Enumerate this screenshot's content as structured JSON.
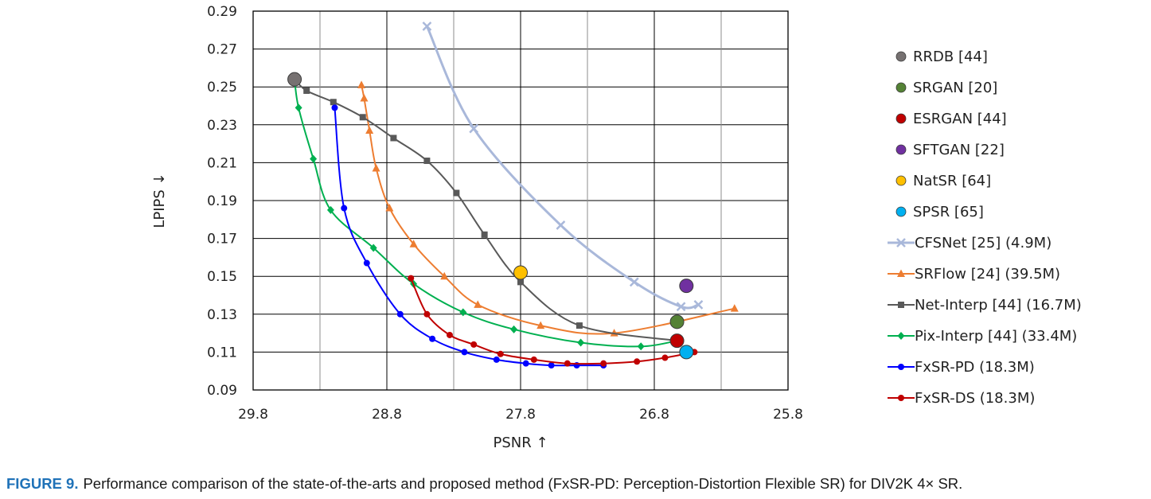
{
  "chart_data": {
    "type": "line",
    "title": "",
    "xlabel": "PSNR ↑",
    "ylabel": "LPIPS ↓",
    "xlim": [
      29.8,
      25.8
    ],
    "ylim": [
      0.09,
      0.29
    ],
    "x_ticks": [
      "29.8",
      "28.8",
      "27.8",
      "26.8",
      "25.8"
    ],
    "y_ticks": [
      "0.29",
      "0.27",
      "0.25",
      "0.23",
      "0.21",
      "0.19",
      "0.17",
      "0.15",
      "0.13",
      "0.11",
      "0.09"
    ],
    "grid": true,
    "legend_position": "right",
    "points": [
      {
        "name": "RRDB [44]",
        "color": "#767171",
        "x": 29.49,
        "y": 0.254
      },
      {
        "name": "SRGAN [20]",
        "color": "#548235",
        "x": 26.63,
        "y": 0.126
      },
      {
        "name": "ESRGAN [44]",
        "color": "#c00000",
        "x": 26.63,
        "y": 0.116
      },
      {
        "name": "SFTGAN [22]",
        "color": "#7030a0",
        "x": 26.56,
        "y": 0.145
      },
      {
        "name": "NatSR [64]",
        "color": "#ffc000",
        "x": 27.8,
        "y": 0.152
      },
      {
        "name": "SPSR [65]",
        "color": "#00b0f0",
        "x": 26.56,
        "y": 0.11
      }
    ],
    "series": [
      {
        "name": "CFSNet [25] (4.9M)",
        "color": "#a9b8da",
        "marker": "x",
        "x": [
          28.5,
          28.15,
          27.5,
          26.95,
          26.6,
          26.47
        ],
        "y": [
          0.282,
          0.228,
          0.177,
          0.147,
          0.134,
          0.135
        ]
      },
      {
        "name": "SRFlow [24] (39.5M)",
        "color": "#ed7d31",
        "marker": "triangle",
        "x": [
          28.99,
          28.97,
          28.93,
          28.88,
          28.78,
          28.6,
          28.37,
          28.12,
          27.65,
          27.1,
          26.2
        ],
        "y": [
          0.251,
          0.244,
          0.227,
          0.207,
          0.186,
          0.167,
          0.15,
          0.135,
          0.124,
          0.12,
          0.133
        ]
      },
      {
        "name": "Net-Interp [44] (16.7M)",
        "color": "#595959",
        "marker": "square",
        "x": [
          29.49,
          29.4,
          29.2,
          28.98,
          28.75,
          28.5,
          28.28,
          28.07,
          27.8,
          27.36,
          26.63
        ],
        "y": [
          0.254,
          0.248,
          0.242,
          0.234,
          0.223,
          0.211,
          0.194,
          0.172,
          0.147,
          0.124,
          0.116
        ]
      },
      {
        "name": "Pix-Interp [44] (33.4M)",
        "color": "#00b050",
        "marker": "diamond",
        "x": [
          29.49,
          29.46,
          29.35,
          29.22,
          28.9,
          28.6,
          28.23,
          27.85,
          27.35,
          26.9,
          26.63
        ],
        "y": [
          0.254,
          0.239,
          0.212,
          0.185,
          0.165,
          0.146,
          0.131,
          0.122,
          0.115,
          0.113,
          0.116
        ]
      },
      {
        "name": "FxSR-PD (18.3M)",
        "color": "#0000ff",
        "marker": "circle",
        "x": [
          29.19,
          29.12,
          28.95,
          28.7,
          28.46,
          28.22,
          27.98,
          27.76,
          27.57,
          27.38,
          27.18
        ],
        "y": [
          0.239,
          0.186,
          0.157,
          0.13,
          0.117,
          0.11,
          0.106,
          0.104,
          0.103,
          0.103,
          0.103
        ]
      },
      {
        "name": "FxSR-DS (18.3M)",
        "color": "#c00000",
        "marker": "circle",
        "x": [
          28.62,
          28.5,
          28.33,
          28.15,
          27.95,
          27.7,
          27.45,
          27.18,
          26.93,
          26.72,
          26.5
        ],
        "y": [
          0.149,
          0.13,
          0.119,
          0.114,
          0.109,
          0.106,
          0.104,
          0.104,
          0.105,
          0.107,
          0.11
        ]
      }
    ]
  },
  "caption": {
    "label": "FIGURE 9.",
    "text": "Performance comparison of the state-of-the-arts and proposed method (FxSR-PD: Perception-Distortion Flexible SR) for DIV2K 4× SR."
  }
}
